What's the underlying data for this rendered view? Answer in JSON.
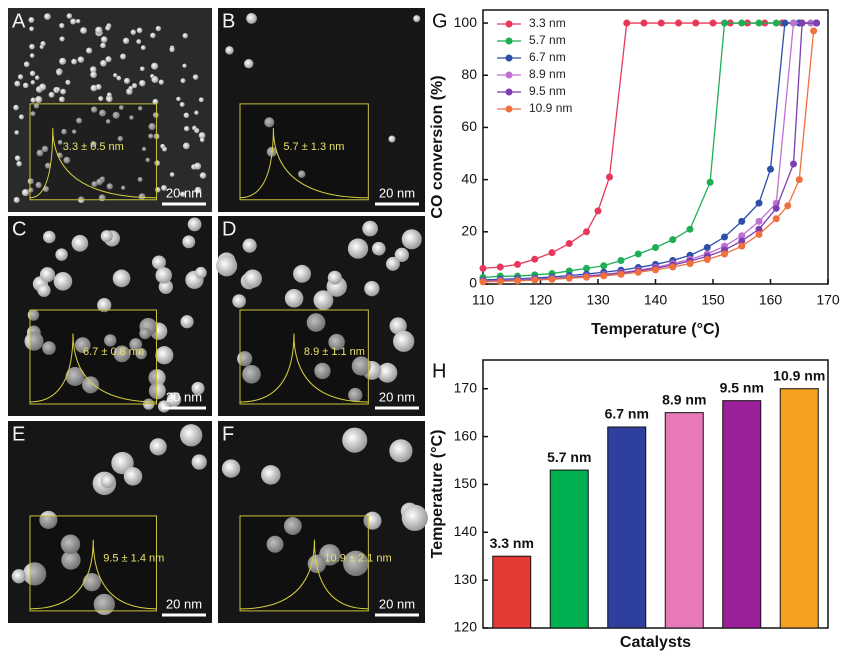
{
  "panels": [
    {
      "letter": "A",
      "size": "3.3 ± 0.5 nm",
      "scale": "20 nm"
    },
    {
      "letter": "B",
      "size": "5.7 ± 1.3 nm",
      "scale": "20 nm"
    },
    {
      "letter": "C",
      "size": "6.7 ± 0.8 nm",
      "scale": "20 nm"
    },
    {
      "letter": "D",
      "size": "8.9 ± 1.1 nm",
      "scale": "20 nm"
    },
    {
      "letter": "E",
      "size": "9.5 ± 1.4 nm",
      "scale": "20 nm"
    },
    {
      "letter": "F",
      "size": "10.9 ± 2.1 nm",
      "scale": "20 nm"
    }
  ],
  "chart_data": [
    {
      "type": "line",
      "panel": "G",
      "xlabel": "Temperature (°C)",
      "ylabel": "CO conversion (%)",
      "xlim": [
        110,
        170
      ],
      "ylim": [
        0,
        105
      ],
      "xticks": [
        110,
        120,
        130,
        140,
        150,
        160,
        170
      ],
      "yticks": [
        0,
        20,
        40,
        60,
        80,
        100
      ],
      "legend": "upper left",
      "series": [
        {
          "name": "3.3 nm",
          "color": "#e8385a",
          "x": [
            110,
            113,
            116,
            119,
            122,
            125,
            128,
            130,
            132,
            135,
            138,
            141,
            144,
            147,
            150,
            153,
            156,
            159,
            162,
            165,
            168
          ],
          "values": [
            6,
            6.5,
            7.5,
            9.5,
            12,
            15.5,
            20,
            28,
            41,
            100,
            100,
            100,
            100,
            100,
            100,
            100,
            100,
            100,
            100,
            100,
            100
          ]
        },
        {
          "name": "5.7 nm",
          "color": "#1fae55",
          "x": [
            110,
            113,
            116,
            119,
            122,
            125,
            128,
            131,
            134,
            137,
            140,
            143,
            146,
            149.5,
            152,
            155,
            158,
            161,
            164,
            167
          ],
          "values": [
            2.5,
            3,
            3,
            3.5,
            4,
            5,
            6,
            7,
            9,
            11.5,
            14,
            17,
            21,
            39,
            100,
            100,
            100,
            100,
            100,
            100
          ]
        },
        {
          "name": "6.7 nm",
          "color": "#2e4fa8",
          "x": [
            110,
            113,
            116,
            119,
            122,
            125,
            128,
            131,
            134,
            137,
            140,
            143,
            146,
            149,
            152,
            155,
            158,
            160,
            162.5,
            165,
            168
          ],
          "values": [
            1.5,
            1.8,
            2,
            2.3,
            2.7,
            3.2,
            3.8,
            4.5,
            5.3,
            6.3,
            7.5,
            9,
            11,
            14,
            18,
            24,
            31,
            44,
            100,
            100,
            100
          ]
        },
        {
          "name": "8.9 nm",
          "color": "#c070d0",
          "x": [
            110,
            113,
            116,
            119,
            122,
            125,
            128,
            131,
            134,
            137,
            140,
            143,
            146,
            149,
            152,
            155,
            158,
            161,
            164,
            167
          ],
          "values": [
            1.2,
            1.4,
            1.6,
            1.9,
            2.2,
            2.6,
            3.1,
            3.7,
            4.4,
            5.3,
            6.4,
            7.8,
            9.5,
            11.5,
            14.5,
            18.5,
            24,
            31,
            100,
            100
          ]
        },
        {
          "name": "9.5 nm",
          "color": "#7b3fb0",
          "x": [
            110,
            113,
            116,
            119,
            122,
            125,
            128,
            131,
            134,
            137,
            140,
            143,
            146,
            149,
            152,
            155,
            158,
            161,
            164,
            165.5,
            168
          ],
          "values": [
            1,
            1.2,
            1.4,
            1.7,
            2,
            2.4,
            2.9,
            3.5,
            4.2,
            5,
            6,
            7.3,
            8.8,
            10.6,
            13,
            16.5,
            21,
            29,
            46,
            100,
            100
          ]
        },
        {
          "name": "10.9 nm",
          "color": "#f07040",
          "x": [
            110,
            113,
            116,
            119,
            122,
            125,
            128,
            131,
            134,
            137,
            140,
            143,
            146,
            149,
            152,
            155,
            158,
            161,
            163,
            165,
            167.5
          ],
          "values": [
            0.8,
            1,
            1.2,
            1.5,
            1.8,
            2.2,
            2.6,
            3.1,
            3.7,
            4.5,
            5.4,
            6.5,
            7.8,
            9.4,
            11.5,
            14.5,
            19,
            25,
            30,
            40,
            97
          ]
        }
      ]
    },
    {
      "type": "bar",
      "panel": "H",
      "xlabel": "Catalysts",
      "ylabel": "Temperature (°C)",
      "categories": [
        "3.3 nm",
        "5.7 nm",
        "6.7 nm",
        "8.9 nm",
        "9.5 nm",
        "10.9 nm"
      ],
      "values": [
        135,
        153,
        162,
        165,
        167.5,
        170
      ],
      "colors": [
        "#e53935",
        "#00b050",
        "#2e3f9e",
        "#e879b8",
        "#9b1f9b",
        "#f5a020"
      ],
      "ylim": [
        120,
        176
      ],
      "yticks": [
        120,
        130,
        140,
        150,
        160,
        170
      ]
    }
  ]
}
